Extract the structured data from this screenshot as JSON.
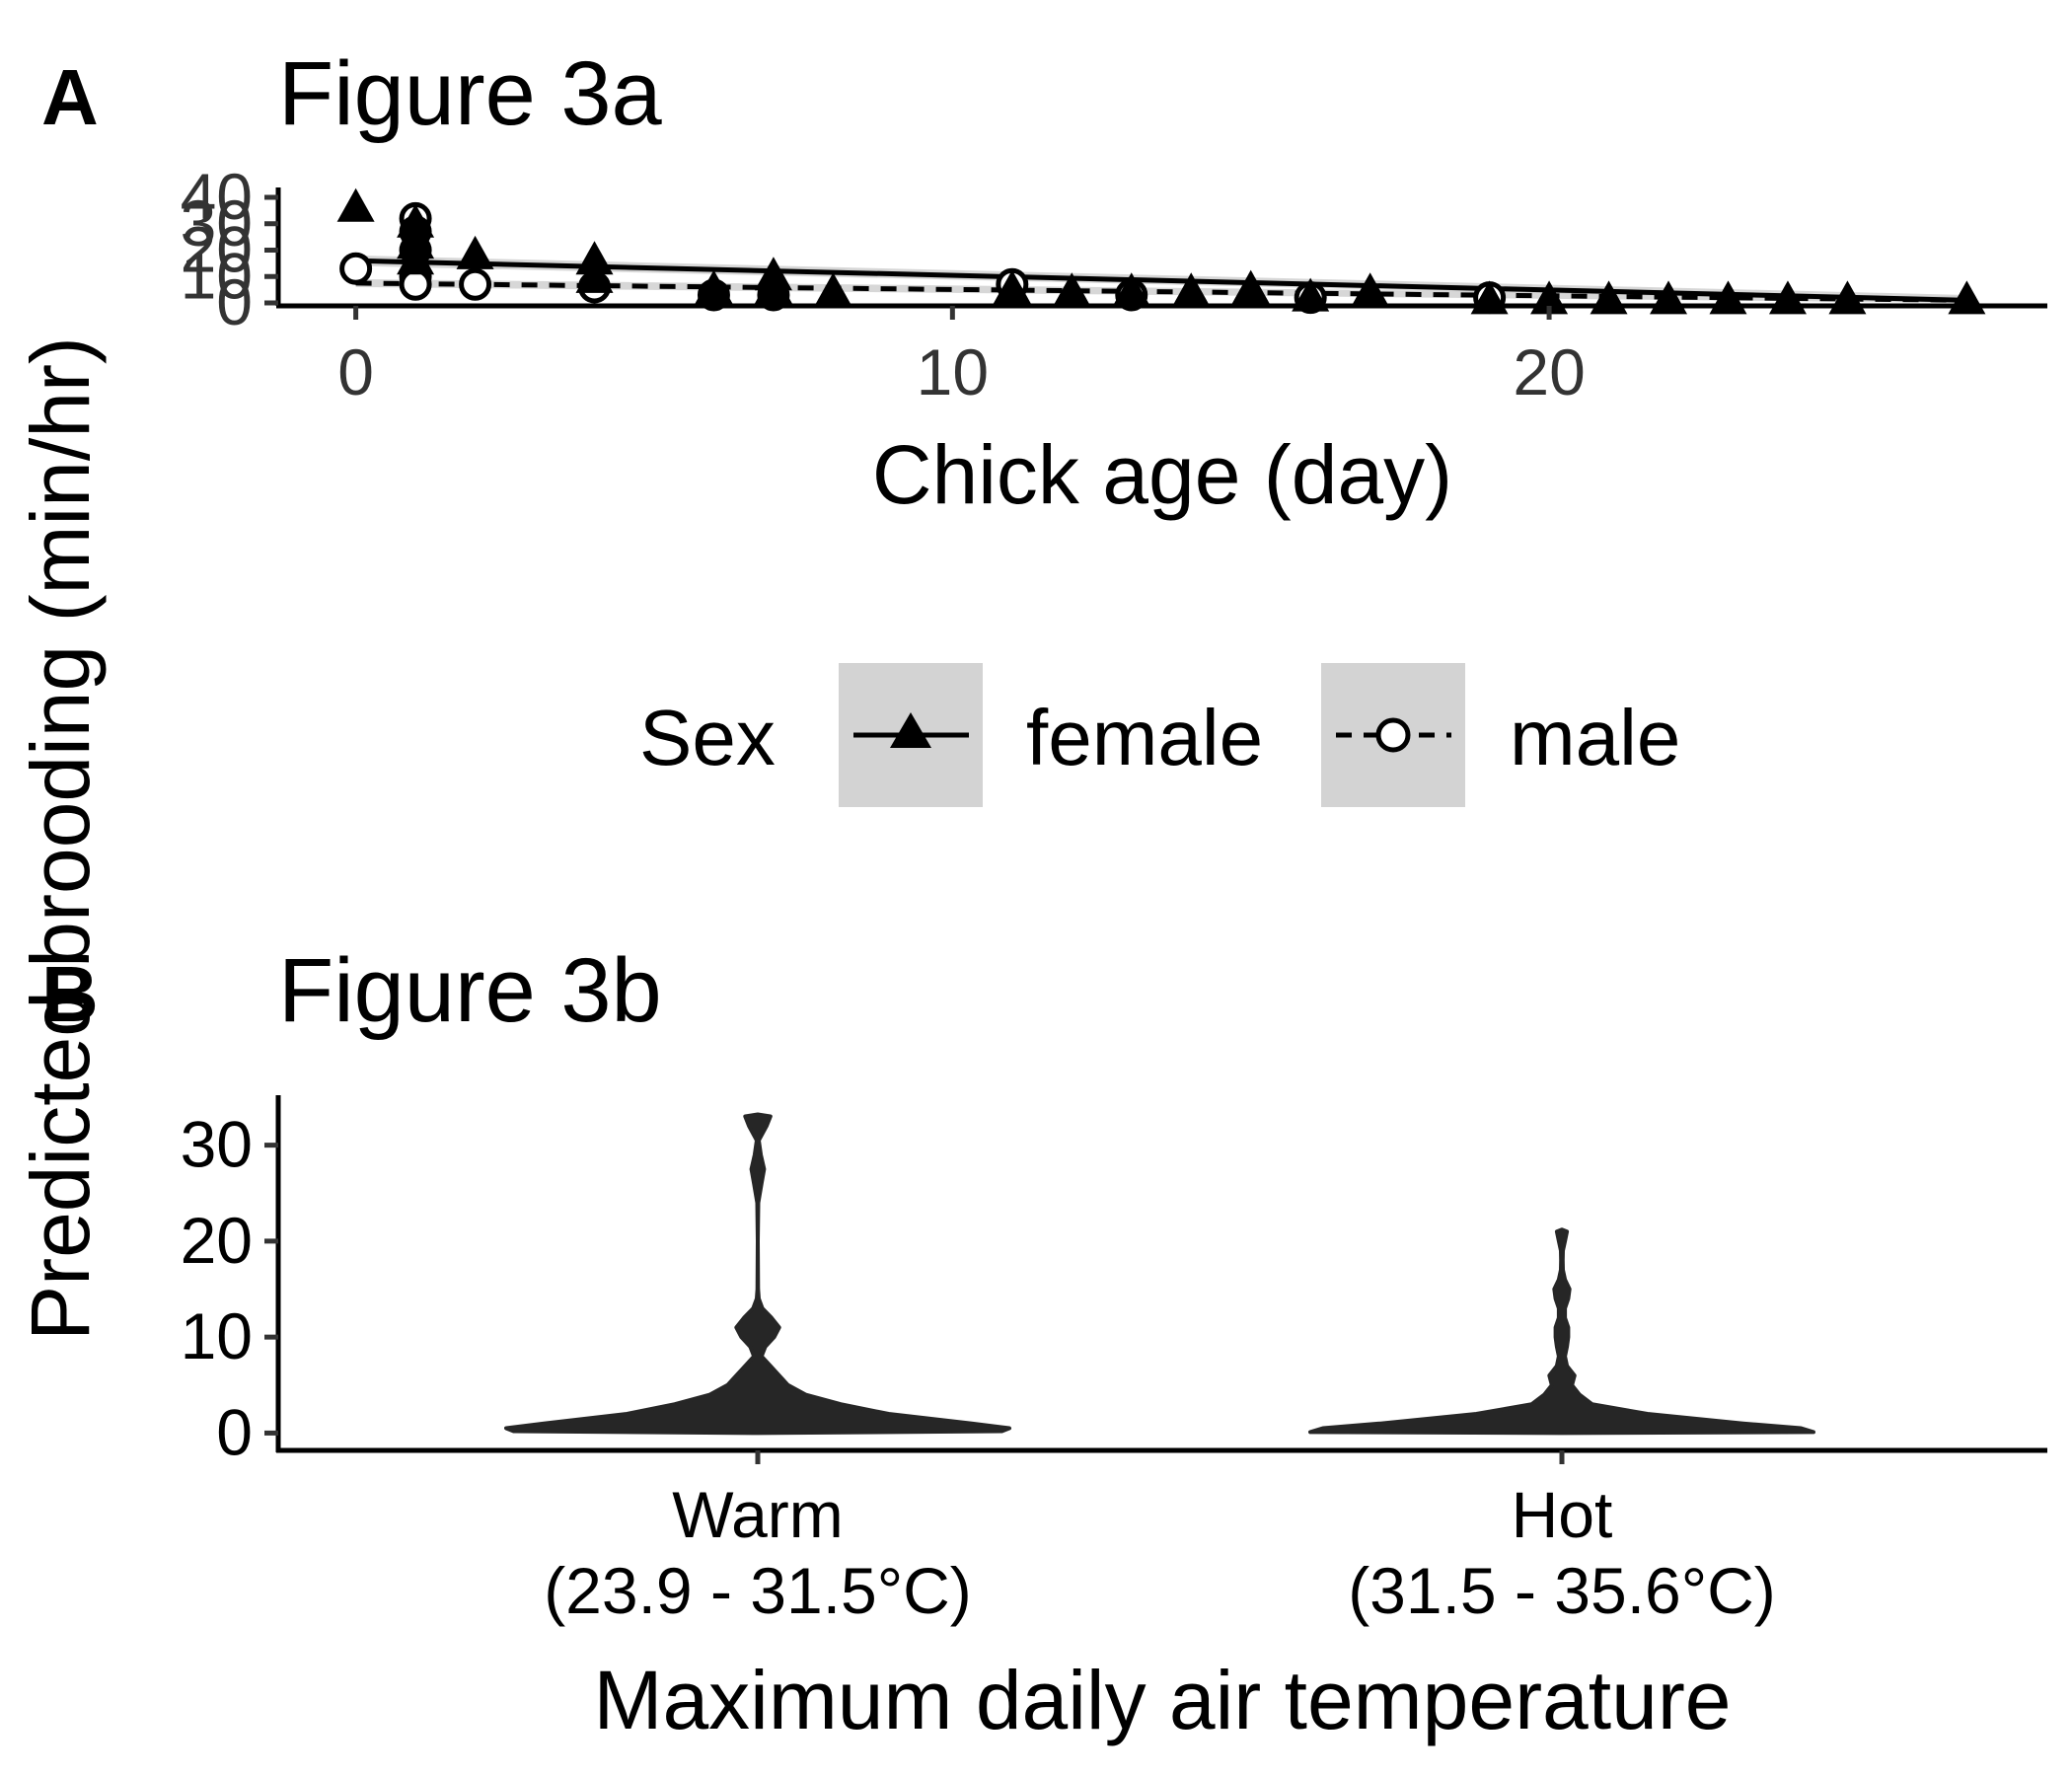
{
  "figure": {
    "y_axis_title": "Predicted brooding (min/hr)"
  },
  "chart_data": [
    {
      "type": "scatter",
      "panel": "A",
      "title": "Figure 3a",
      "xlabel": "Chick age (day)",
      "ylabel": "Predicted brooding (min/hr)",
      "xlim": [
        -1.3,
        28.3
      ],
      "ylim": [
        0,
        40
      ],
      "x_ticks": [
        0,
        10,
        20
      ],
      "y_ticks": [
        0,
        10,
        20,
        30,
        40
      ],
      "grid": false,
      "legend": {
        "title": "Sex",
        "placement": "bottom",
        "key_fill": "#d3d3d3",
        "entries": [
          {
            "label": "female",
            "line": "solid",
            "marker": "filled-triangle"
          },
          {
            "label": "male",
            "line": "dashed",
            "marker": "open-circle"
          }
        ]
      },
      "series": [
        {
          "name": "female",
          "line": "solid",
          "marker": "filled-triangle",
          "color": "#000000",
          "fit": {
            "x": [
              0,
              27
            ],
            "y": [
              16,
              1
            ],
            "ci_half_width": 2
          },
          "points": [
            {
              "x": 0,
              "y": 36
            },
            {
              "x": 1,
              "y": 30
            },
            {
              "x": 1,
              "y": 22
            },
            {
              "x": 1,
              "y": 16
            },
            {
              "x": 2,
              "y": 18
            },
            {
              "x": 4,
              "y": 16
            },
            {
              "x": 4,
              "y": 9
            },
            {
              "x": 6,
              "y": 5
            },
            {
              "x": 7,
              "y": 10
            },
            {
              "x": 7,
              "y": 5
            },
            {
              "x": 8,
              "y": 4
            },
            {
              "x": 11,
              "y": 5
            },
            {
              "x": 12,
              "y": 4
            },
            {
              "x": 13,
              "y": 4
            },
            {
              "x": 14,
              "y": 4
            },
            {
              "x": 15,
              "y": 5
            },
            {
              "x": 16,
              "y": 2
            },
            {
              "x": 17,
              "y": 4
            },
            {
              "x": 19,
              "y": 1
            },
            {
              "x": 20,
              "y": 1
            },
            {
              "x": 21,
              "y": 1
            },
            {
              "x": 22,
              "y": 1
            },
            {
              "x": 23,
              "y": 1
            },
            {
              "x": 24,
              "y": 1
            },
            {
              "x": 25,
              "y": 1
            },
            {
              "x": 27,
              "y": 1
            }
          ]
        },
        {
          "name": "male",
          "line": "dashed",
          "marker": "open-circle",
          "color": "#000000",
          "fit": {
            "x": [
              0,
              27
            ],
            "y": [
              7.5,
              1
            ],
            "ci_half_width": 1.5
          },
          "points": [
            {
              "x": 0,
              "y": 13
            },
            {
              "x": 1,
              "y": 32
            },
            {
              "x": 1,
              "y": 27
            },
            {
              "x": 1,
              "y": 20
            },
            {
              "x": 1,
              "y": 10
            },
            {
              "x": 1,
              "y": 7
            },
            {
              "x": 2,
              "y": 7
            },
            {
              "x": 4,
              "y": 6
            },
            {
              "x": 6,
              "y": 3
            },
            {
              "x": 7,
              "y": 3
            },
            {
              "x": 11,
              "y": 7
            },
            {
              "x": 13,
              "y": 3
            },
            {
              "x": 16,
              "y": 2
            },
            {
              "x": 19,
              "y": 2
            }
          ]
        }
      ]
    },
    {
      "type": "violin",
      "panel": "B",
      "title": "Figure 3b",
      "xlabel": "Maximum daily air temperature",
      "ylabel": "Predicted brooding (min/hr)",
      "ylim": [
        -1.5,
        35
      ],
      "y_ticks": [
        0,
        10,
        20,
        30
      ],
      "grid": false,
      "fill": "#262626",
      "categories": [
        {
          "label": "Warm",
          "sublabel": "(23.9 - 31.5°C)"
        },
        {
          "label": "Hot",
          "sublabel": "(31.5 - 35.6°C)"
        }
      ],
      "violins": [
        {
          "category": "Warm",
          "profile": [
            {
              "y": 0,
              "w": 0.0
            },
            {
              "y": 0.2,
              "w": 0.97
            },
            {
              "y": 0.5,
              "w": 1.0
            },
            {
              "y": 1,
              "w": 0.85
            },
            {
              "y": 2,
              "w": 0.52
            },
            {
              "y": 3,
              "w": 0.33
            },
            {
              "y": 4,
              "w": 0.19
            },
            {
              "y": 5,
              "w": 0.12
            },
            {
              "y": 6,
              "w": 0.085
            },
            {
              "y": 7,
              "w": 0.05
            },
            {
              "y": 8,
              "w": 0.015
            },
            {
              "y": 9,
              "w": 0.03
            },
            {
              "y": 10,
              "w": 0.065
            },
            {
              "y": 11,
              "w": 0.085
            },
            {
              "y": 12,
              "w": 0.055
            },
            {
              "y": 13,
              "w": 0.018
            },
            {
              "y": 14,
              "w": 0.004
            },
            {
              "y": 15,
              "w": 0.001
            },
            {
              "y": 20,
              "w": 0.0
            },
            {
              "y": 24,
              "w": 0.002
            },
            {
              "y": 26,
              "w": 0.015
            },
            {
              "y": 27.5,
              "w": 0.025
            },
            {
              "y": 29,
              "w": 0.012
            },
            {
              "y": 30.5,
              "w": 0.004
            },
            {
              "y": 32,
              "w": 0.035
            },
            {
              "y": 33,
              "w": 0.05
            },
            {
              "y": 33.2,
              "w": 0.0
            }
          ]
        },
        {
          "category": "Hot",
          "profile": [
            {
              "y": 0,
              "w": 0.0
            },
            {
              "y": 0.1,
              "w": 1.0
            },
            {
              "y": 0.5,
              "w": 0.95
            },
            {
              "y": 1,
              "w": 0.72
            },
            {
              "y": 2,
              "w": 0.34
            },
            {
              "y": 3,
              "w": 0.12
            },
            {
              "y": 4,
              "w": 0.07
            },
            {
              "y": 5,
              "w": 0.04
            },
            {
              "y": 6,
              "w": 0.05
            },
            {
              "y": 7,
              "w": 0.02
            },
            {
              "y": 8,
              "w": 0.012
            },
            {
              "y": 9,
              "w": 0.02
            },
            {
              "y": 10,
              "w": 0.025
            },
            {
              "y": 11,
              "w": 0.025
            },
            {
              "y": 12,
              "w": 0.012
            },
            {
              "y": 13,
              "w": 0.012
            },
            {
              "y": 14,
              "w": 0.025
            },
            {
              "y": 15,
              "w": 0.03
            },
            {
              "y": 16,
              "w": 0.012
            },
            {
              "y": 17,
              "w": 0.004
            },
            {
              "y": 18,
              "w": 0.003
            },
            {
              "y": 19,
              "w": 0.004
            },
            {
              "y": 20,
              "w": 0.012
            },
            {
              "y": 21,
              "w": 0.02
            },
            {
              "y": 21.2,
              "w": 0.0
            }
          ]
        }
      ]
    }
  ]
}
